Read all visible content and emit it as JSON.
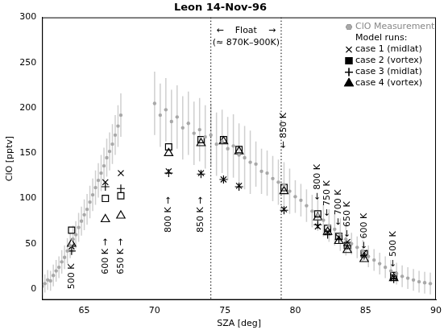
{
  "chart_data": {
    "type": "scatter",
    "title": "Leon 14-Nov-96",
    "x_label": "SZA [deg]",
    "y_label": "ClO [pptv]",
    "xlim": [
      62,
      90
    ],
    "xticks": [
      65,
      70,
      75,
      80,
      85,
      90
    ],
    "ylim": [
      -12,
      300
    ],
    "yticks": [
      0,
      50,
      100,
      150,
      200,
      250,
      300
    ],
    "grid": false,
    "legend": "top right",
    "legend_title": "Model runs:",
    "vlines": [
      74,
      79
    ],
    "series": [
      {
        "name": "ClO Measurement",
        "color": "#a8a8a8",
        "marker": "circle",
        "x": [
          62.0,
          62.2,
          62.4,
          62.6,
          62.8,
          63.0,
          63.2,
          63.4,
          63.6,
          63.8,
          64.0,
          64.2,
          64.4,
          64.6,
          64.8,
          65.0,
          65.2,
          65.4,
          65.6,
          65.8,
          66.0,
          66.2,
          66.4,
          66.6,
          66.8,
          67.0,
          67.2,
          67.4,
          67.6,
          70.0,
          70.4,
          70.8,
          71.2,
          71.6,
          72.0,
          72.4,
          72.8,
          73.2,
          73.6,
          74.0,
          74.4,
          74.8,
          75.2,
          75.6,
          76.0,
          76.4,
          76.8,
          77.2,
          77.6,
          78.0,
          78.4,
          78.8,
          79.2,
          79.6,
          80.0,
          80.4,
          80.8,
          81.2,
          81.6,
          82.0,
          82.4,
          82.8,
          83.2,
          83.6,
          84.0,
          84.4,
          84.8,
          85.2,
          85.6,
          86.0,
          86.4,
          86.8,
          87.2,
          87.6,
          88.0,
          88.4,
          88.8,
          89.2,
          89.6
        ],
        "values": [
          3,
          6,
          10,
          9,
          15,
          20,
          24,
          30,
          35,
          42,
          48,
          55,
          60,
          68,
          75,
          82,
          88,
          96,
          104,
          112,
          120,
          128,
          136,
          145,
          152,
          160,
          170,
          180,
          192,
          205,
          192,
          198,
          185,
          190,
          178,
          183,
          172,
          176,
          168,
          170,
          160,
          163,
          155,
          158,
          148,
          145,
          140,
          138,
          130,
          128,
          122,
          118,
          115,
          108,
          102,
          98,
          92,
          86,
          82,
          76,
          70,
          66,
          60,
          55,
          50,
          46,
          42,
          36,
          32,
          28,
          24,
          20,
          17,
          14,
          12,
          10,
          8,
          7,
          6
        ],
        "errors": [
          10,
          10,
          11,
          11,
          12,
          12,
          12,
          13,
          13,
          14,
          14,
          15,
          15,
          16,
          16,
          17,
          17,
          18,
          18,
          19,
          19,
          20,
          20,
          21,
          21,
          22,
          22,
          23,
          24,
          35,
          35,
          35,
          35,
          35,
          35,
          35,
          35,
          35,
          35,
          35,
          35,
          35,
          35,
          35,
          35,
          35,
          35,
          25,
          25,
          25,
          25,
          25,
          25,
          25,
          18,
          18,
          18,
          18,
          18,
          18,
          18,
          18,
          18,
          18,
          12,
          12,
          12,
          12,
          12,
          12,
          12,
          12,
          12,
          12,
          12,
          12,
          12,
          12,
          12
        ]
      },
      {
        "name": "case 1 (midlat)",
        "color": "#000000",
        "marker": "x",
        "x": [
          64.1,
          66.5,
          67.6,
          71.0,
          73.3,
          74.9,
          76.0,
          79.2,
          81.6,
          82.3,
          83.1,
          83.7,
          84.9,
          87.0
        ],
        "values": [
          47,
          118,
          128,
          130,
          128,
          121,
          114,
          88,
          69,
          63,
          57,
          52,
          40,
          13
        ]
      },
      {
        "name": "case 2 (vortex)",
        "color": "#000000",
        "marker": "square",
        "x": [
          64.1,
          66.5,
          67.6,
          71.0,
          73.3,
          74.9,
          76.0,
          79.2,
          81.6,
          82.3,
          83.1,
          83.7,
          84.9,
          87.0
        ],
        "values": [
          65,
          100,
          103,
          157,
          165,
          165,
          154,
          112,
          83,
          67,
          58,
          48,
          39,
          15
        ]
      },
      {
        "name": "case 3 (midlat)",
        "color": "#000000",
        "marker": "plus",
        "x": [
          64.1,
          66.5,
          67.6,
          71.0,
          73.3,
          74.9,
          76.0,
          79.2,
          81.6,
          82.3,
          83.1,
          83.7,
          84.9,
          87.0
        ],
        "values": [
          42,
          113,
          111,
          128,
          127,
          121,
          113,
          87,
          71,
          60,
          55,
          48,
          37,
          11
        ]
      },
      {
        "name": "case 4 (vortex)",
        "color": "#000000",
        "marker": "triangle",
        "x": [
          64.1,
          66.5,
          67.6,
          71.0,
          73.3,
          74.9,
          76.0,
          79.2,
          81.6,
          82.3,
          83.1,
          83.7,
          84.9,
          87.0
        ],
        "values": [
          50,
          77,
          81,
          150,
          161,
          163,
          152,
          108,
          79,
          63,
          53,
          43,
          33,
          12
        ]
      }
    ],
    "annotations": [
      {
        "text": "←    Float    →",
        "x": 76.5,
        "y": 285,
        "rotate": false
      },
      {
        "text": "(≈ 870K–900K)",
        "x": 76.5,
        "y": 272,
        "rotate": false
      },
      {
        "text": "500 K",
        "x": 64.1,
        "y": 14,
        "rotate": true
      },
      {
        "text": "600 K →",
        "x": 66.5,
        "y": 36,
        "rotate": true
      },
      {
        "text": "650 K →",
        "x": 67.6,
        "y": 36,
        "rotate": true
      },
      {
        "text": "800 K →",
        "x": 71.0,
        "y": 82,
        "rotate": true
      },
      {
        "text": "850 K →",
        "x": 73.3,
        "y": 82,
        "rotate": true
      },
      {
        "text": "← 850 K",
        "x": 79.2,
        "y": 175,
        "rotate": true
      },
      {
        "text": "← 800 K",
        "x": 81.6,
        "y": 118,
        "rotate": true
      },
      {
        "text": "← 750 K",
        "x": 82.3,
        "y": 100,
        "rotate": true
      },
      {
        "text": "← 700 K",
        "x": 83.1,
        "y": 90,
        "rotate": true
      },
      {
        "text": "← 650 K",
        "x": 83.7,
        "y": 77,
        "rotate": true
      },
      {
        "text": "← 600 K",
        "x": 84.9,
        "y": 64,
        "rotate": true
      },
      {
        "text": "← 500 K",
        "x": 87.0,
        "y": 44,
        "rotate": true
      }
    ]
  }
}
